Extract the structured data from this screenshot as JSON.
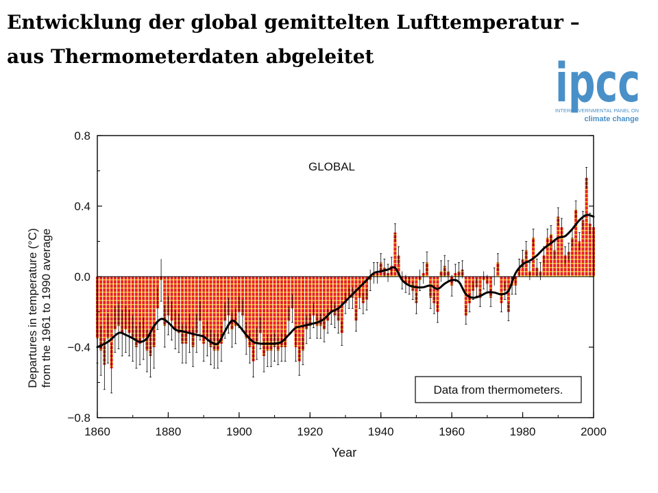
{
  "slide": {
    "title_line1": "Entwicklung der global gemittelten Lufttemperatur –",
    "title_line2": "aus Thermometerdaten abgeleitet"
  },
  "logo": {
    "wordmark": "ipcc",
    "line1": "INTERGOVERNMENTAL PANEL ON",
    "line2": "climate change",
    "color": "#4a90c8"
  },
  "colors": {
    "bar_fill": "#e8231c",
    "bar_stripe": "#f2c21a",
    "smooth_line": "#000000",
    "error_bar": "#000000"
  },
  "chart_data": {
    "type": "bar",
    "title": "GLOBAL",
    "xlabel": "Year",
    "ylabel": "Departures in temperature (°C) from the 1961 to 1990 average",
    "annotation": "Data from thermometers.",
    "xlim": [
      1860,
      2000
    ],
    "ylim": [
      -0.8,
      0.8
    ],
    "x_ticks": [
      "1860",
      "1880",
      "1900",
      "1920",
      "1940",
      "1960",
      "1980",
      "2000"
    ],
    "x_tick_values": [
      1860,
      1880,
      1900,
      1920,
      1940,
      1960,
      1980,
      2000
    ],
    "y_ticks": [
      "0.8",
      "0.4",
      "0.0",
      "−0.4",
      "−0.8"
    ],
    "y_tick_values": [
      0.8,
      0.4,
      0.0,
      -0.4,
      -0.8
    ],
    "grid": false,
    "series": [
      {
        "kind": "annual_bars_with_error",
        "x": [
          1860,
          1861,
          1862,
          1863,
          1864,
          1865,
          1866,
          1867,
          1868,
          1869,
          1870,
          1871,
          1872,
          1873,
          1874,
          1875,
          1876,
          1877,
          1878,
          1879,
          1880,
          1881,
          1882,
          1883,
          1884,
          1885,
          1886,
          1887,
          1888,
          1889,
          1890,
          1891,
          1892,
          1893,
          1894,
          1895,
          1896,
          1897,
          1898,
          1899,
          1900,
          1901,
          1902,
          1903,
          1904,
          1905,
          1906,
          1907,
          1908,
          1909,
          1910,
          1911,
          1912,
          1913,
          1914,
          1915,
          1916,
          1917,
          1918,
          1919,
          1920,
          1921,
          1922,
          1923,
          1924,
          1925,
          1926,
          1927,
          1928,
          1929,
          1930,
          1931,
          1932,
          1933,
          1934,
          1935,
          1936,
          1937,
          1938,
          1939,
          1940,
          1941,
          1942,
          1943,
          1944,
          1945,
          1946,
          1947,
          1948,
          1949,
          1950,
          1951,
          1952,
          1953,
          1954,
          1955,
          1956,
          1957,
          1958,
          1959,
          1960,
          1961,
          1962,
          1963,
          1964,
          1965,
          1966,
          1967,
          1968,
          1969,
          1970,
          1971,
          1972,
          1973,
          1974,
          1975,
          1976,
          1977,
          1978,
          1979,
          1980,
          1981,
          1982,
          1983,
          1984,
          1985,
          1986,
          1987,
          1988,
          1989,
          1990,
          1991,
          1992,
          1993,
          1994,
          1995,
          1996,
          1997,
          1998,
          1999,
          2000
        ],
        "values": [
          -0.35,
          -0.42,
          -0.5,
          -0.35,
          -0.52,
          -0.3,
          -0.28,
          -0.32,
          -0.3,
          -0.32,
          -0.35,
          -0.4,
          -0.38,
          -0.35,
          -0.42,
          -0.45,
          -0.4,
          -0.18,
          -0.02,
          -0.28,
          -0.22,
          -0.25,
          -0.3,
          -0.32,
          -0.38,
          -0.38,
          -0.32,
          -0.4,
          -0.32,
          -0.25,
          -0.38,
          -0.35,
          -0.4,
          -0.42,
          -0.42,
          -0.38,
          -0.25,
          -0.22,
          -0.3,
          -0.28,
          -0.2,
          -0.22,
          -0.35,
          -0.4,
          -0.48,
          -0.38,
          -0.32,
          -0.45,
          -0.42,
          -0.42,
          -0.4,
          -0.42,
          -0.4,
          -0.4,
          -0.25,
          -0.18,
          -0.4,
          -0.48,
          -0.42,
          -0.3,
          -0.28,
          -0.22,
          -0.28,
          -0.28,
          -0.3,
          -0.25,
          -0.2,
          -0.22,
          -0.25,
          -0.32,
          -0.15,
          -0.12,
          -0.12,
          -0.25,
          -0.12,
          -0.15,
          -0.13,
          -0.02,
          0.02,
          0.02,
          0.08,
          0.05,
          0.02,
          0.06,
          0.25,
          0.12,
          -0.02,
          -0.04,
          -0.05,
          -0.08,
          -0.15,
          -0.02,
          0.02,
          0.08,
          -0.12,
          -0.15,
          -0.2,
          0.03,
          0.06,
          0.03,
          -0.05,
          0.02,
          0.03,
          0.04,
          -0.22,
          -0.15,
          -0.08,
          -0.06,
          -0.12,
          -0.02,
          -0.04,
          -0.12,
          0.0,
          0.08,
          -0.15,
          -0.08,
          -0.2,
          -0.05,
          -0.05,
          0.05,
          0.1,
          0.15,
          0.03,
          0.22,
          0.05,
          0.03,
          0.12,
          0.22,
          0.24,
          0.15,
          0.34,
          0.28,
          0.12,
          0.14,
          0.22,
          0.38,
          0.2,
          0.32,
          0.56,
          0.3,
          0.28
        ],
        "errors": [
          0.14,
          0.14,
          0.14,
          0.14,
          0.14,
          0.13,
          0.13,
          0.13,
          0.13,
          0.13,
          0.13,
          0.12,
          0.12,
          0.12,
          0.12,
          0.12,
          0.12,
          0.12,
          0.12,
          0.12,
          0.11,
          0.11,
          0.11,
          0.11,
          0.11,
          0.11,
          0.11,
          0.11,
          0.11,
          0.11,
          0.1,
          0.1,
          0.1,
          0.1,
          0.1,
          0.1,
          0.1,
          0.1,
          0.1,
          0.1,
          0.09,
          0.09,
          0.09,
          0.09,
          0.09,
          0.09,
          0.09,
          0.09,
          0.09,
          0.09,
          0.08,
          0.08,
          0.08,
          0.08,
          0.08,
          0.08,
          0.08,
          0.08,
          0.08,
          0.08,
          0.07,
          0.07,
          0.07,
          0.07,
          0.07,
          0.07,
          0.07,
          0.07,
          0.07,
          0.07,
          0.06,
          0.06,
          0.06,
          0.06,
          0.06,
          0.06,
          0.06,
          0.06,
          0.06,
          0.06,
          0.05,
          0.05,
          0.05,
          0.05,
          0.05,
          0.05,
          0.05,
          0.05,
          0.05,
          0.05,
          0.06,
          0.06,
          0.06,
          0.06,
          0.06,
          0.06,
          0.06,
          0.06,
          0.06,
          0.06,
          0.06,
          0.05,
          0.05,
          0.05,
          0.05,
          0.05,
          0.05,
          0.05,
          0.05,
          0.05,
          0.05,
          0.05,
          0.05,
          0.05,
          0.05,
          0.05,
          0.05,
          0.05,
          0.05,
          0.05,
          0.05,
          0.05,
          0.05,
          0.05,
          0.05,
          0.05,
          0.05,
          0.05,
          0.05,
          0.05,
          0.05,
          0.05,
          0.05,
          0.05,
          0.05,
          0.05,
          0.05,
          0.05,
          0.06,
          0.06,
          0.06
        ]
      },
      {
        "kind": "smoothed_curve",
        "x": [
          1860,
          1863,
          1866,
          1868,
          1870,
          1872,
          1874,
          1876,
          1878,
          1880,
          1882,
          1884,
          1886,
          1888,
          1890,
          1892,
          1894,
          1896,
          1898,
          1900,
          1902,
          1904,
          1906,
          1908,
          1910,
          1912,
          1914,
          1916,
          1918,
          1920,
          1922,
          1924,
          1926,
          1928,
          1930,
          1932,
          1934,
          1936,
          1938,
          1940,
          1942,
          1944,
          1946,
          1948,
          1950,
          1952,
          1954,
          1956,
          1958,
          1960,
          1962,
          1964,
          1966,
          1968,
          1970,
          1972,
          1974,
          1976,
          1978,
          1980,
          1982,
          1984,
          1986,
          1988,
          1990,
          1992,
          1994,
          1996,
          1998,
          2000
        ],
        "values": [
          -0.4,
          -0.37,
          -0.32,
          -0.33,
          -0.35,
          -0.37,
          -0.35,
          -0.28,
          -0.24,
          -0.26,
          -0.3,
          -0.31,
          -0.32,
          -0.33,
          -0.34,
          -0.37,
          -0.38,
          -0.31,
          -0.25,
          -0.28,
          -0.33,
          -0.37,
          -0.38,
          -0.38,
          -0.38,
          -0.37,
          -0.33,
          -0.29,
          -0.28,
          -0.27,
          -0.26,
          -0.24,
          -0.2,
          -0.18,
          -0.14,
          -0.1,
          -0.06,
          -0.02,
          0.02,
          0.03,
          0.04,
          0.05,
          -0.02,
          -0.05,
          -0.06,
          -0.06,
          -0.05,
          -0.07,
          -0.04,
          -0.02,
          -0.03,
          -0.1,
          -0.12,
          -0.11,
          -0.09,
          -0.09,
          -0.1,
          -0.08,
          0.02,
          0.07,
          0.09,
          0.12,
          0.16,
          0.19,
          0.22,
          0.23,
          0.27,
          0.32,
          0.35,
          0.34
        ]
      }
    ]
  }
}
